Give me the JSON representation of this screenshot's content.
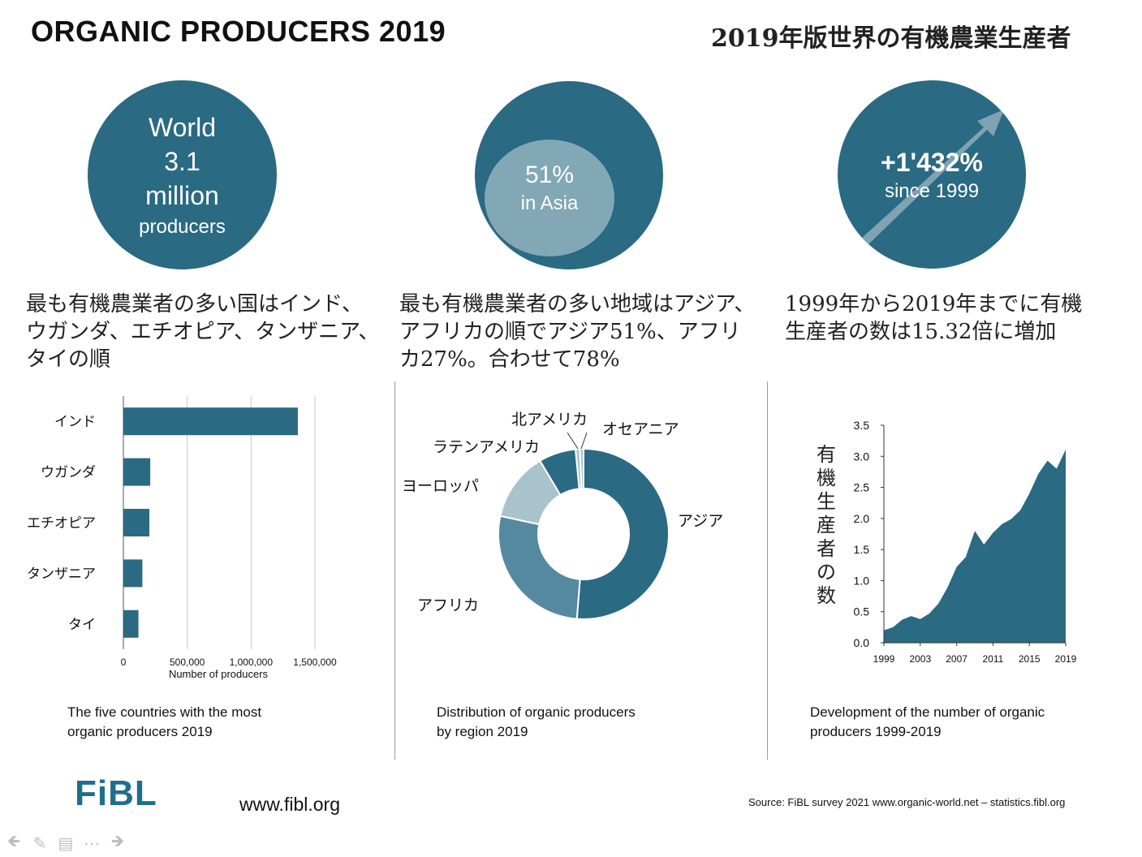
{
  "header": {
    "title_en": "ORGANIC PRODUCERS 2019",
    "title_ja": "2019年版世界の有機農業生産者"
  },
  "colors": {
    "teal": "#2a6a82",
    "mid": "#5589a0",
    "light": "#a9c3cd",
    "inner_circle": "#82a8b6",
    "arrow": "#7fa3b3"
  },
  "icons": [
    "arrow-up-right-icon",
    "arrow-left-icon",
    "pencil-icon",
    "menu-icon",
    "more-icon",
    "arrow-right-icon"
  ],
  "circles": {
    "world": {
      "line1": "World",
      "line2": "3.1",
      "line3": "million",
      "line4": "producers"
    },
    "asia": {
      "value": "51%",
      "label": "in Asia"
    },
    "growth": {
      "value": "+1'432%",
      "label": "since 1999"
    }
  },
  "descriptions": {
    "left": [
      "最も有機農業者の多い国はインド、",
      "ウガンダ、エチオピア、タンザニア、",
      "タイの順"
    ],
    "middle": [
      "最も有機農業者の多い地域はアジア、",
      "アフリカの順でアジア51%、アフリ",
      "カ27%。合わせて78%"
    ],
    "right": [
      "1999年から2019年までに有機",
      "生産者の数は15.32倍に増加"
    ]
  },
  "chart_data": [
    {
      "type": "bar",
      "orientation": "horizontal",
      "categories": [
        "インド",
        "ウガンダ",
        "エチオピア",
        "タンザニア",
        "タイ"
      ],
      "values": [
        1366226,
        210352,
        203602,
        148607,
        118114
      ],
      "xlim": [
        0,
        1500000
      ],
      "xticks": [
        "0",
        "500,000",
        "1,000,000",
        "1,500,000"
      ],
      "xlabel": "Number of producers",
      "grid": true,
      "title": "The five countries with the most organic producers 2019"
    },
    {
      "type": "pie",
      "donut": true,
      "categories": [
        "アジア",
        "アフリカ",
        "ヨーロッパ",
        "ラテンアメリカ",
        "北アメリカ",
        "オセアニア"
      ],
      "values": [
        51,
        27,
        13,
        7,
        0.8,
        0.7
      ],
      "title": "Distribution of organic producers by region 2019"
    },
    {
      "type": "area",
      "x": [
        1999,
        2000,
        2001,
        2002,
        2003,
        2004,
        2005,
        2006,
        2007,
        2008,
        2009,
        2010,
        2011,
        2012,
        2013,
        2014,
        2015,
        2016,
        2017,
        2018,
        2019
      ],
      "values": [
        0.2,
        0.25,
        0.37,
        0.43,
        0.38,
        0.47,
        0.63,
        0.89,
        1.22,
        1.38,
        1.8,
        1.58,
        1.77,
        1.91,
        1.99,
        2.13,
        2.4,
        2.72,
        2.93,
        2.8,
        3.11
      ],
      "ylim": [
        0,
        3.5
      ],
      "yticks": [
        "0.0",
        "0.5",
        "1.0",
        "1.5",
        "2.0",
        "2.5",
        "3.0",
        "3.5"
      ],
      "xticks": [
        "1999",
        "2003",
        "2007",
        "2011",
        "2015",
        "2019"
      ],
      "ylabel": "有機生産者の数",
      "title": "Development of the number of organic producers 1999-2019"
    }
  ],
  "captions": {
    "bar": [
      "The five countries with the most",
      "organic producers 2019"
    ],
    "pie": [
      "Distribution of organic producers",
      "by region 2019"
    ],
    "area": [
      "Development of the number of organic",
      "producers 1999-2019"
    ]
  },
  "footer": {
    "logo": "FiBL",
    "url": "www.fibl.org",
    "source": "Source: FiBL survey 2021 www.organic-world.net – statistics.fibl.org"
  }
}
